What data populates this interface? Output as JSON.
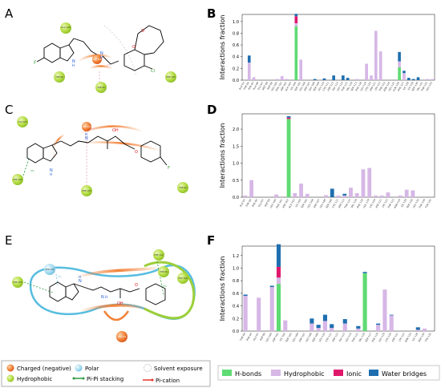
{
  "panels": {
    "A": "A",
    "B": "B",
    "C": "C",
    "D": "D",
    "E": "E",
    "F": "F"
  },
  "molecules": {
    "A": {
      "residues": [
        "ALA 120",
        "ASP 121",
        "THR 96",
        "PHE 193",
        "THR 96"
      ],
      "atoms": [
        "F",
        "N",
        "H",
        "N",
        "H",
        "O",
        "O",
        "Cl"
      ],
      "annotations": [
        "3%"
      ]
    },
    "C": {
      "residues": [
        "CYS 120",
        "ASP 121",
        "PHE 193",
        "THR 96",
        "PHE 193"
      ],
      "atoms": [
        "N",
        "H",
        "N",
        "H",
        "OH",
        "O",
        "F"
      ],
      "annotations": [
        "3%",
        "3%"
      ]
    },
    "E": {
      "residues": [
        "PHE 193",
        "SER 120",
        "PHE 112",
        "THR 96",
        "PHE 193",
        "ASP 121"
      ],
      "atoms": [
        "N",
        "H",
        "N",
        "H",
        "OH",
        "O"
      ],
      "annotations": [
        "17%",
        "3%"
      ]
    }
  },
  "legend": {
    "items": [
      {
        "label": "Charged (negative)",
        "color": "#f2833a",
        "icon": "charged-negative-circle-icon"
      },
      {
        "label": "Polar",
        "color": "#8fd3e6",
        "icon": "polar-circle-icon"
      },
      {
        "label": "Solvent exposure",
        "color": "#cfcfcf",
        "icon": "solvent-exposure-circle-icon"
      },
      {
        "label": "Hydrophobic",
        "color": "#9ccf3a",
        "icon": "hydrophobic-circle-icon"
      },
      {
        "label": "Pi-Pi stacking",
        "color": "#2e9b3f",
        "icon": "pi-pi-stacking-line-icon"
      },
      {
        "label": "Pi-cation",
        "color": "#e8322b",
        "icon": "pi-cation-line-icon"
      }
    ]
  },
  "chart_legend": {
    "items": [
      {
        "label": "H-bonds",
        "color": "#5fdb73"
      },
      {
        "label": "Hydrophobic",
        "color": "#d6b7e6"
      },
      {
        "label": "Ionic",
        "color": "#e0186c"
      },
      {
        "label": "Water bridges",
        "color": "#1f6fb0"
      }
    ]
  },
  "chart_data": [
    {
      "panel": "B",
      "type": "bar",
      "stacked": true,
      "ylabel": "Interactions fraction",
      "ylim": [
        0,
        1.12
      ],
      "yticks": [
        "0.0",
        "0.2",
        "0.4",
        "0.6",
        "0.8",
        "1.0"
      ],
      "categories": [
        "ALA 93",
        "THR 94",
        "PHE 95",
        "ALA 96",
        "GLU 97",
        "MET 98",
        "ASP 99",
        "LEU 100",
        "PHE 101",
        "ASP 102",
        "ALA 103",
        "ILE 104",
        "SER 105",
        "LEU 106",
        "ASP 107",
        "LEU 108",
        "SER 109",
        "LEU 110",
        "CYS 111",
        "ASP 112",
        "GLY 113",
        "LEU 114",
        "THR 115",
        "VAL 116",
        "SER 117",
        "PHE 118",
        "LEU 119",
        "CYS 120",
        "ASP 121",
        "LYS 122",
        "THR 123",
        "ASN 124",
        "LEU 125",
        "GLN 126",
        "PHE 127",
        "ILE 128",
        "ILE 129",
        "SER 130",
        "VAL 131",
        "THR 132",
        "LEU 133"
      ],
      "series": [
        {
          "name": "H-bonds",
          "values": [
            0,
            0,
            0,
            0,
            0,
            0,
            0,
            0,
            0,
            0,
            0,
            0.92,
            0,
            0,
            0,
            0,
            0,
            0,
            0,
            0,
            0,
            0,
            0,
            0,
            0,
            0,
            0,
            0,
            0,
            0,
            0,
            0,
            0,
            0.22,
            0,
            0,
            0,
            0,
            0,
            0,
            0
          ]
        },
        {
          "name": "Hydrophobic",
          "values": [
            0,
            0.3,
            0.05,
            0,
            0,
            0,
            0,
            0.02,
            0.07,
            0.02,
            0,
            0.05,
            0.35,
            0,
            0,
            0,
            0,
            0,
            0,
            0,
            0,
            0,
            0,
            0,
            0.02,
            0,
            0.28,
            0.08,
            0.84,
            0.49,
            0,
            0,
            0,
            0.1,
            0.12,
            0,
            0,
            0,
            0,
            0.02,
            0.02
          ]
        },
        {
          "name": "Ionic",
          "values": [
            0,
            0,
            0,
            0,
            0,
            0,
            0,
            0,
            0,
            0,
            0,
            0.12,
            0,
            0,
            0,
            0,
            0,
            0,
            0,
            0,
            0,
            0,
            0,
            0,
            0,
            0,
            0,
            0,
            0,
            0,
            0,
            0,
            0,
            0,
            0,
            0,
            0,
            0,
            0,
            0,
            0
          ]
        },
        {
          "name": "Water bridges",
          "values": [
            0,
            0.12,
            0,
            0,
            0,
            0,
            0,
            0,
            0,
            0,
            0,
            0.04,
            0,
            0,
            0,
            0.02,
            0,
            0.03,
            0,
            0.08,
            0,
            0.08,
            0.04,
            0,
            0,
            0,
            0,
            0,
            0,
            0,
            0,
            0,
            0,
            0.16,
            0.04,
            0.04,
            0.02,
            0.05,
            0,
            0,
            0
          ]
        }
      ]
    },
    {
      "panel": "D",
      "type": "bar",
      "stacked": true,
      "ylabel": "Interactions fraction",
      "ylim": [
        0,
        2.45
      ],
      "yticks": [
        "0.0",
        "0.5",
        "1.0",
        "1.5",
        "2.0"
      ],
      "categories": [
        "ALA 93",
        "THR 94",
        "PHE 95",
        "GLU 97",
        "ASP 99",
        "LEU 100",
        "PHE 101",
        "ASP 102",
        "ALA 103",
        "ILE 104",
        "SER 105",
        "LEU 106",
        "ASP 107",
        "LEU 108",
        "SER 109",
        "CYS 111",
        "ASP 112",
        "THR 115",
        "VAL 116",
        "PHE 118",
        "LEU 119",
        "CYS 120",
        "ASP 121",
        "LYS 122",
        "THR 123",
        "ASN 124",
        "ILE 128",
        "SER 130",
        "LEU 133",
        "THR 134",
        "TYR 135"
      ],
      "series": [
        {
          "name": "H-bonds",
          "values": [
            0,
            0,
            0,
            0,
            0,
            0,
            0,
            2.3,
            0,
            0,
            0,
            0,
            0,
            0,
            0,
            0,
            0,
            0,
            0,
            0,
            0,
            0,
            0,
            0,
            0,
            0,
            0,
            0,
            0,
            0,
            0
          ]
        },
        {
          "name": "Hydrophobic",
          "values": [
            0.05,
            0.5,
            0,
            0,
            0,
            0.08,
            0,
            0,
            0.12,
            0.4,
            0.1,
            0,
            0,
            0.06,
            0,
            0.05,
            0.05,
            0.28,
            0.12,
            0.82,
            0.86,
            0.05,
            0.05,
            0.14,
            0,
            0.05,
            0.22,
            0.2,
            0,
            0,
            0
          ]
        },
        {
          "name": "Ionic",
          "values": [
            0,
            0,
            0,
            0,
            0,
            0,
            0,
            0.04,
            0,
            0,
            0,
            0,
            0,
            0,
            0,
            0,
            0,
            0,
            0,
            0,
            0,
            0,
            0,
            0,
            0,
            0,
            0,
            0,
            0,
            0,
            0
          ]
        },
        {
          "name": "Water bridges",
          "values": [
            0,
            0,
            0,
            0,
            0,
            0,
            0,
            0.04,
            0,
            0,
            0,
            0,
            0,
            0,
            0.25,
            0,
            0.05,
            0,
            0,
            0,
            0,
            0,
            0,
            0,
            0,
            0,
            0,
            0,
            0,
            0,
            0
          ]
        }
      ]
    },
    {
      "panel": "F",
      "type": "bar",
      "stacked": true,
      "ylabel": "Interactions fraction",
      "ylim": [
        0,
        1.35
      ],
      "yticks": [
        "0.0",
        "0.2",
        "0.4",
        "0.6",
        "0.8",
        "1.0",
        "1.2"
      ],
      "categories": [
        "THR 94",
        "PHE 95",
        "GLU 97",
        "ASP 99",
        "LEU 100",
        "ASP 102",
        "ILE 104",
        "SER 105",
        "LEU 106",
        "ASP 107",
        "LEU 108",
        "SER 109",
        "LEU 110",
        "CYS 111",
        "ASP 112",
        "GLY 113",
        "LEU 114",
        "THR 115",
        "VAL 116",
        "SER 117",
        "PHE 118",
        "LEU 119",
        "CYS 120",
        "ASP 121",
        "LYS 122",
        "ASN 124",
        "ILE 128",
        "SER 130",
        "TYR 135"
      ],
      "series": [
        {
          "name": "H-bonds",
          "values": [
            0,
            0,
            0,
            0,
            0,
            0.75,
            0,
            0,
            0,
            0,
            0,
            0,
            0,
            0,
            0,
            0,
            0,
            0,
            0.92,
            0,
            0,
            0,
            0,
            0,
            0,
            0,
            0,
            0,
            0
          ]
        },
        {
          "name": "Hydrophobic",
          "values": [
            0.56,
            0,
            0.53,
            0,
            0.7,
            0.1,
            0.17,
            0,
            0,
            0,
            0.12,
            0.05,
            0.16,
            0.05,
            0,
            0.12,
            0,
            0.04,
            0,
            0,
            0.1,
            0.66,
            0.25,
            0,
            0,
            0,
            0.02,
            0.04,
            0
          ]
        },
        {
          "name": "Ionic",
          "values": [
            0,
            0,
            0,
            0,
            0,
            0.17,
            0,
            0,
            0,
            0,
            0,
            0,
            0,
            0,
            0,
            0,
            0,
            0,
            0,
            0,
            0,
            0,
            0,
            0,
            0,
            0,
            0,
            0,
            0
          ]
        },
        {
          "name": "Water bridges",
          "values": [
            0.02,
            0,
            0,
            0,
            0.02,
            0.36,
            0,
            0,
            0,
            0,
            0.08,
            0.05,
            0.1,
            0.06,
            0,
            0.07,
            0,
            0.04,
            0.02,
            0,
            0.02,
            0,
            0.01,
            0,
            0,
            0,
            0.04,
            0,
            0
          ]
        }
      ]
    }
  ]
}
